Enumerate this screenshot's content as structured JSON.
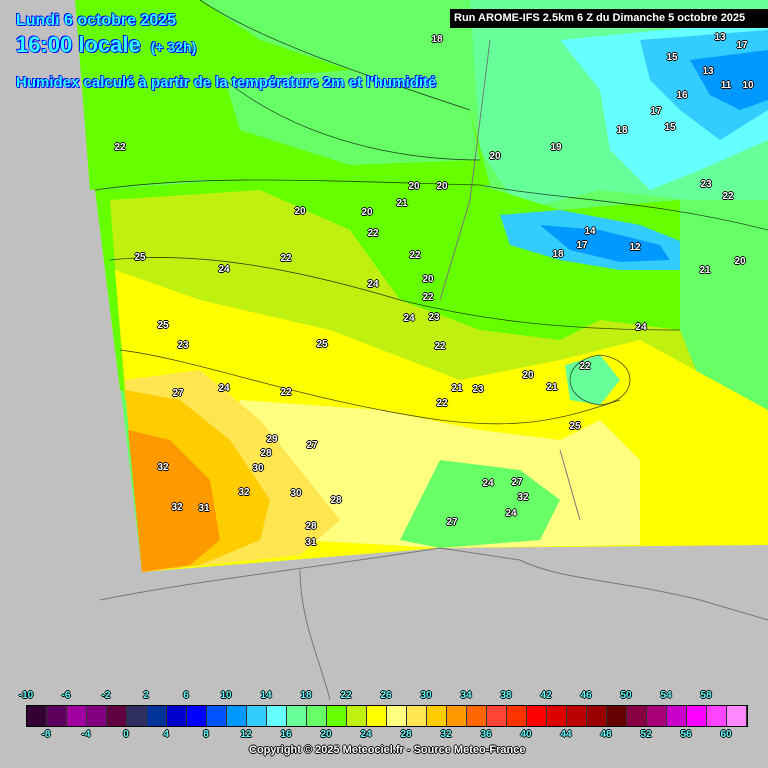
{
  "header": {
    "date": "Lundi 6 octobre 2025",
    "time": "16:00 locale",
    "lead": "(+ 32h)",
    "subtitle": "Humidex calculé à partir de la température 2m et l'humidité",
    "run": "Run AROME-IFS 2.5km 6 Z du Dimanche 5 octobre 2025"
  },
  "map": {
    "labels": [
      "18",
      "13",
      "17",
      "15",
      "13",
      "11",
      "10",
      "16",
      "17",
      "18",
      "15",
      "19",
      "20",
      "22",
      "20",
      "20",
      "21",
      "23",
      "22",
      "20",
      "20",
      "22",
      "14",
      "12",
      "18",
      "17",
      "21",
      "20",
      "25",
      "22",
      "22",
      "24",
      "24",
      "20",
      "22",
      "24",
      "23",
      "25",
      "24",
      "22",
      "23",
      "25",
      "22",
      "20",
      "21",
      "27",
      "24",
      "22",
      "21",
      "23",
      "22",
      "25",
      "27",
      "29",
      "28",
      "30",
      "32",
      "32",
      "30",
      "28",
      "24",
      "27",
      "32",
      "32",
      "31",
      "24",
      "27",
      "28",
      "31"
    ]
  },
  "colorbar": {
    "levels_top": [
      "-10",
      "-6",
      "-2",
      "2",
      "6",
      "10",
      "14",
      "18",
      "22",
      "26",
      "30",
      "34",
      "38",
      "42",
      "46",
      "50",
      "54",
      "58"
    ],
    "levels_bottom": [
      "-8",
      "-4",
      "0",
      "4",
      "8",
      "12",
      "16",
      "20",
      "24",
      "28",
      "32",
      "36",
      "40",
      "44",
      "48",
      "52",
      "56",
      "60"
    ],
    "colors": [
      "#330033",
      "#5c005c",
      "#a000a0",
      "#800080",
      "#600040",
      "#303060",
      "#003399",
      "#0000cc",
      "#0000ff",
      "#0055ff",
      "#0099ff",
      "#33ccff",
      "#66ffff",
      "#66ff99",
      "#66ff66",
      "#66ff00",
      "#c0f010",
      "#ffff00",
      "#ffff80",
      "#ffe650",
      "#ffcc00",
      "#ff9900",
      "#ff6600",
      "#ff4433",
      "#ff3300",
      "#ff0000",
      "#dd0000",
      "#bb0000",
      "#990000",
      "#660000",
      "#880044",
      "#aa0077",
      "#cc00cc",
      "#ff00ff",
      "#ff44ff",
      "#ff88ff"
    ]
  },
  "footer": {
    "copyright": "Copyright © 2025 Meteociel.fr - Source Meteo-France"
  }
}
